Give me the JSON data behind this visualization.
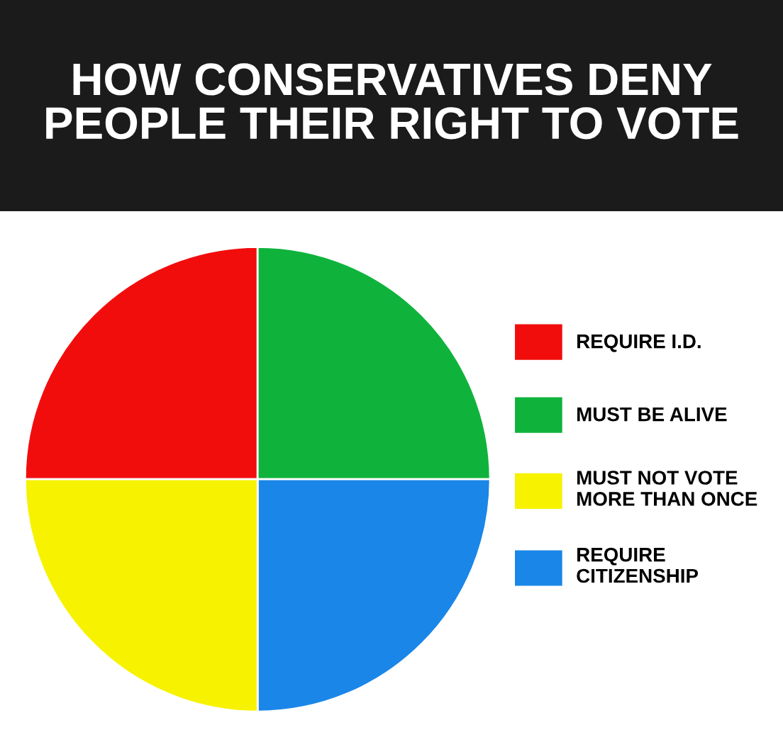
{
  "chart_data": {
    "type": "pie",
    "title": "HOW CONSERVATIVES DENY\nPEOPLE THEIR RIGHT TO VOTE",
    "categories": [
      "REQUIRE I.D.",
      "MUST BE ALIVE",
      "MUST NOT VOTE\nMORE THAN ONCE",
      "REQUIRE\nCITIZENSHIP"
    ],
    "values": [
      25,
      25,
      25,
      25
    ],
    "colors": [
      "#f20d0d",
      "#0fb33c",
      "#f7f200",
      "#1a86e8"
    ],
    "legend": "right"
  }
}
